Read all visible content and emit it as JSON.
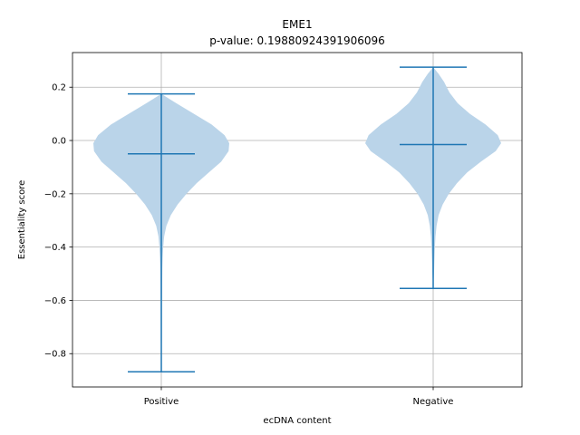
{
  "chart_data": {
    "type": "violin",
    "title": "EME1",
    "subtitle": "p-value: 0.19880924391906096",
    "xlabel": "ecDNA content",
    "ylabel": "Essentiality score",
    "categories": [
      "Positive",
      "Negative"
    ],
    "ylim": [
      -0.925,
      0.33
    ],
    "yticks": [
      -0.8,
      -0.6,
      -0.4,
      -0.2,
      0.0,
      0.2
    ],
    "ytick_labels": [
      "−0.8",
      "−0.6",
      "−0.4",
      "−0.2",
      "0.0",
      "0.2"
    ],
    "grid": true,
    "colors": {
      "body": "#bad4e9",
      "line": "#1f77b4"
    },
    "series": [
      {
        "category": "Positive",
        "min": -0.868,
        "max": 0.175,
        "median": -0.05,
        "density": [
          [
            0.175,
            0.0
          ],
          [
            0.14,
            0.22
          ],
          [
            0.1,
            0.48
          ],
          [
            0.06,
            0.74
          ],
          [
            0.02,
            0.93
          ],
          [
            -0.01,
            1.0
          ],
          [
            -0.04,
            0.99
          ],
          [
            -0.08,
            0.88
          ],
          [
            -0.12,
            0.7
          ],
          [
            -0.16,
            0.52
          ],
          [
            -0.2,
            0.37
          ],
          [
            -0.24,
            0.24
          ],
          [
            -0.28,
            0.14
          ],
          [
            -0.32,
            0.075
          ],
          [
            -0.36,
            0.042
          ],
          [
            -0.4,
            0.028
          ],
          [
            -0.44,
            0.02
          ],
          [
            -0.48,
            0.015
          ],
          [
            -0.55,
            0.012
          ],
          [
            -0.65,
            0.01
          ],
          [
            -0.75,
            0.008
          ],
          [
            -0.868,
            0.0
          ]
        ]
      },
      {
        "category": "Negative",
        "min": -0.555,
        "max": 0.275,
        "median": -0.015,
        "density": [
          [
            0.275,
            0.0
          ],
          [
            0.25,
            0.08
          ],
          [
            0.22,
            0.16
          ],
          [
            0.18,
            0.24
          ],
          [
            0.14,
            0.36
          ],
          [
            0.1,
            0.54
          ],
          [
            0.06,
            0.77
          ],
          [
            0.02,
            0.95
          ],
          [
            -0.01,
            1.0
          ],
          [
            -0.04,
            0.92
          ],
          [
            -0.08,
            0.7
          ],
          [
            -0.12,
            0.5
          ],
          [
            -0.16,
            0.35
          ],
          [
            -0.2,
            0.23
          ],
          [
            -0.24,
            0.14
          ],
          [
            -0.28,
            0.08
          ],
          [
            -0.32,
            0.05
          ],
          [
            -0.36,
            0.034
          ],
          [
            -0.4,
            0.025
          ],
          [
            -0.45,
            0.018
          ],
          [
            -0.5,
            0.012
          ],
          [
            -0.555,
            0.0
          ]
        ]
      }
    ]
  }
}
